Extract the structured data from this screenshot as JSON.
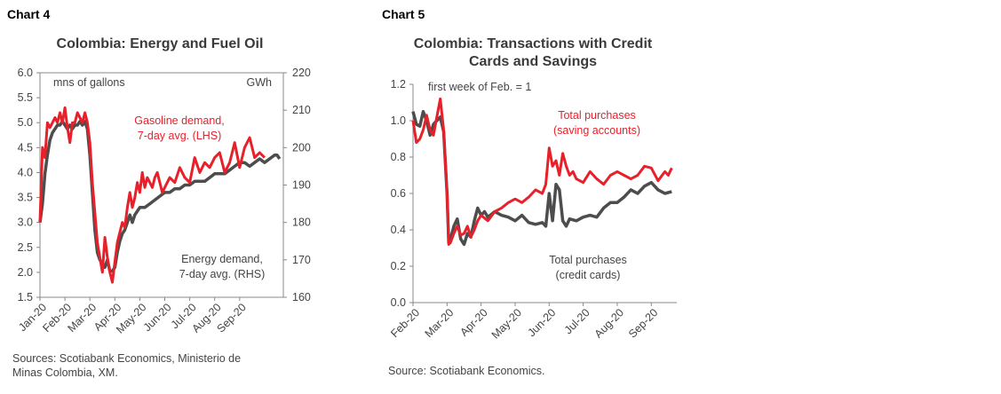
{
  "chart_data": [
    {
      "type": "line",
      "label": "Chart 4",
      "title": "Colombia:  Energy and Fuel Oil",
      "ylabel_left": "mns of gallons",
      "ylabel_right": "GWh",
      "ylim_left": [
        1.5,
        6.0
      ],
      "yticks_left": [
        "1.5",
        "2.0",
        "2.5",
        "3.0",
        "3.5",
        "4.0",
        "4.5",
        "5.0",
        "5.5",
        "6.0"
      ],
      "ylim_right": [
        160,
        220
      ],
      "yticks_right": [
        "160",
        "170",
        "180",
        "190",
        "200",
        "210",
        "220"
      ],
      "xlim": [
        0,
        9.75
      ],
      "xticks": [
        "Jan-20",
        "Feb-20",
        "Mar-20",
        "Apr-20",
        "May-20",
        "Jun-20",
        "Jul-20",
        "Aug-20",
        "Sep-20"
      ],
      "colors": {
        "gasoline": "#e8202a",
        "energy": "#4d4d4d"
      },
      "series": [
        {
          "name": "Gasoline demand, 7-day avg. (LHS)",
          "axis": "left",
          "x": [
            0,
            0.1,
            0.2,
            0.3,
            0.4,
            0.5,
            0.6,
            0.7,
            0.8,
            0.9,
            1.0,
            1.1,
            1.2,
            1.3,
            1.4,
            1.5,
            1.6,
            1.7,
            1.8,
            1.9,
            2.0,
            2.1,
            2.2,
            2.3,
            2.4,
            2.5,
            2.6,
            2.7,
            2.8,
            2.9,
            3.0,
            3.1,
            3.2,
            3.3,
            3.4,
            3.5,
            3.6,
            3.7,
            3.8,
            3.9,
            4.0,
            4.1,
            4.2,
            4.3,
            4.4,
            4.5,
            4.6,
            4.7,
            4.8,
            4.9,
            5.0,
            5.2,
            5.4,
            5.6,
            5.8,
            6.0,
            6.2,
            6.4,
            6.6,
            6.8,
            7.0,
            7.2,
            7.4,
            7.6,
            7.8,
            8.0,
            8.2,
            8.4,
            8.6,
            8.8,
            9.0
          ],
          "y": [
            3.0,
            4.5,
            4.3,
            5.0,
            4.9,
            5.0,
            5.1,
            5.0,
            5.2,
            5.0,
            5.3,
            4.9,
            4.6,
            5.0,
            5.0,
            5.2,
            5.1,
            5.0,
            5.2,
            5.0,
            4.6,
            3.8,
            3.2,
            2.6,
            2.3,
            2.0,
            2.7,
            2.3,
            2.0,
            1.8,
            2.2,
            2.6,
            2.8,
            3.0,
            2.9,
            3.3,
            3.6,
            3.3,
            3.5,
            3.8,
            3.6,
            4.0,
            3.7,
            3.9,
            3.8,
            3.7,
            3.9,
            4.0,
            3.8,
            3.6,
            3.7,
            3.9,
            3.8,
            4.1,
            3.9,
            3.8,
            4.3,
            4.0,
            4.2,
            4.1,
            4.3,
            4.4,
            4.0,
            4.2,
            4.6,
            4.1,
            4.5,
            4.7,
            4.3,
            4.4,
            4.3
          ]
        },
        {
          "name": "Energy demand, 7-day avg. (RHS)",
          "axis": "right",
          "x": [
            0,
            0.1,
            0.2,
            0.3,
            0.4,
            0.5,
            0.6,
            0.7,
            0.8,
            0.9,
            1.0,
            1.1,
            1.2,
            1.3,
            1.4,
            1.5,
            1.6,
            1.7,
            1.8,
            1.9,
            2.0,
            2.1,
            2.2,
            2.3,
            2.4,
            2.5,
            2.6,
            2.7,
            2.8,
            2.9,
            3.0,
            3.1,
            3.2,
            3.3,
            3.4,
            3.5,
            3.6,
            3.7,
            3.8,
            3.9,
            4.0,
            4.2,
            4.4,
            4.6,
            4.8,
            5.0,
            5.2,
            5.4,
            5.6,
            5.8,
            6.0,
            6.2,
            6.4,
            6.6,
            6.8,
            7.0,
            7.2,
            7.4,
            7.6,
            7.8,
            8.0,
            8.2,
            8.4,
            8.6,
            8.8,
            9.0,
            9.2,
            9.4,
            9.5,
            9.6
          ],
          "y": [
            180,
            185,
            193,
            198,
            202,
            204,
            205,
            206,
            206,
            207,
            206,
            205,
            206,
            205,
            206,
            206,
            207,
            206,
            207,
            205,
            198,
            188,
            178,
            172,
            170,
            169,
            168,
            170,
            167,
            167,
            168,
            172,
            175,
            177,
            178,
            180,
            182,
            180,
            182,
            183,
            184,
            184,
            185,
            186,
            187,
            188,
            188,
            189,
            189,
            190,
            190,
            191,
            191,
            191,
            192,
            193,
            193,
            193,
            194,
            195,
            196,
            196,
            195,
            196,
            197,
            196,
            197,
            198,
            198,
            197
          ]
        }
      ]
    },
    {
      "type": "line",
      "label": "Chart 5",
      "title": "Colombia:  Transactions with Credit Cards and Savings",
      "ylabel": "first week of Feb. = 1",
      "ylim": [
        0.0,
        1.2
      ],
      "yticks": [
        "0.0",
        "0.2",
        "0.4",
        "0.6",
        "0.8",
        "1.0",
        "1.2"
      ],
      "xlim": [
        0,
        7.75
      ],
      "xticks": [
        "Feb-20",
        "Mar-20",
        "Apr-20",
        "May-20",
        "Jun-20",
        "Jul-20",
        "Aug-20",
        "Sep-20"
      ],
      "colors": {
        "savings": "#e8202a",
        "credit": "#4d4d4d"
      },
      "series": [
        {
          "name": "Total purchases (saving accounts)",
          "x": [
            0,
            0.1,
            0.2,
            0.3,
            0.4,
            0.5,
            0.6,
            0.7,
            0.8,
            0.9,
            1.0,
            1.05,
            1.1,
            1.2,
            1.3,
            1.4,
            1.5,
            1.6,
            1.7,
            1.8,
            1.9,
            2.0,
            2.2,
            2.4,
            2.6,
            2.8,
            3.0,
            3.2,
            3.4,
            3.6,
            3.8,
            3.9,
            4.0,
            4.1,
            4.2,
            4.3,
            4.4,
            4.5,
            4.6,
            4.7,
            4.8,
            5.0,
            5.2,
            5.4,
            5.6,
            5.8,
            6.0,
            6.2,
            6.4,
            6.6,
            6.8,
            7.0,
            7.2,
            7.4,
            7.5,
            7.6
          ],
          "y": [
            1.0,
            0.88,
            0.9,
            0.95,
            1.03,
            0.95,
            0.92,
            1.02,
            1.12,
            0.95,
            0.6,
            0.32,
            0.33,
            0.38,
            0.42,
            0.37,
            0.38,
            0.42,
            0.36,
            0.4,
            0.45,
            0.48,
            0.45,
            0.5,
            0.52,
            0.55,
            0.57,
            0.55,
            0.58,
            0.62,
            0.6,
            0.65,
            0.85,
            0.75,
            0.78,
            0.7,
            0.82,
            0.75,
            0.7,
            0.72,
            0.68,
            0.66,
            0.72,
            0.68,
            0.65,
            0.7,
            0.72,
            0.7,
            0.68,
            0.7,
            0.75,
            0.74,
            0.67,
            0.72,
            0.7,
            0.74
          ]
        },
        {
          "name": "Total purchases (credit cards)",
          "x": [
            0,
            0.1,
            0.2,
            0.3,
            0.4,
            0.5,
            0.6,
            0.7,
            0.8,
            0.9,
            1.0,
            1.05,
            1.1,
            1.2,
            1.3,
            1.4,
            1.5,
            1.6,
            1.7,
            1.8,
            1.9,
            2.0,
            2.1,
            2.2,
            2.4,
            2.6,
            2.8,
            3.0,
            3.2,
            3.4,
            3.6,
            3.8,
            3.9,
            4.0,
            4.1,
            4.2,
            4.3,
            4.4,
            4.5,
            4.6,
            4.8,
            5.0,
            5.2,
            5.4,
            5.6,
            5.8,
            6.0,
            6.2,
            6.4,
            6.6,
            6.8,
            7.0,
            7.2,
            7.4,
            7.6
          ],
          "y": [
            1.05,
            0.98,
            0.97,
            1.05,
            1.0,
            0.92,
            0.98,
            1.0,
            1.02,
            0.94,
            0.6,
            0.33,
            0.35,
            0.42,
            0.46,
            0.35,
            0.32,
            0.38,
            0.36,
            0.45,
            0.52,
            0.48,
            0.5,
            0.47,
            0.5,
            0.48,
            0.47,
            0.45,
            0.48,
            0.44,
            0.43,
            0.44,
            0.42,
            0.6,
            0.45,
            0.65,
            0.62,
            0.45,
            0.42,
            0.46,
            0.45,
            0.47,
            0.48,
            0.47,
            0.52,
            0.55,
            0.55,
            0.58,
            0.62,
            0.6,
            0.64,
            0.66,
            0.62,
            0.6,
            0.61
          ]
        }
      ]
    }
  ],
  "annotations": {
    "c4_gasoline_line1": "Gasoline demand,",
    "c4_gasoline_line2": "7-day avg. (LHS)",
    "c4_energy_line1": "Energy demand,",
    "c4_energy_line2": "7-day avg. (RHS)",
    "c5_savings_line1": "Total purchases",
    "c5_savings_line2": "(saving accounts)",
    "c5_credit_line1": "Total purchases",
    "c5_credit_line2": "(credit cards)"
  },
  "sources": {
    "c4_line1": "Sources: Scotiabank Economics, Ministerio de",
    "c4_line2": "Minas Colombia, XM.",
    "c5": "Source: Scotiabank Economics."
  },
  "titles": {
    "c5_line1": "Colombia:  Transactions with Credit",
    "c5_line2": "Cards and Savings"
  }
}
